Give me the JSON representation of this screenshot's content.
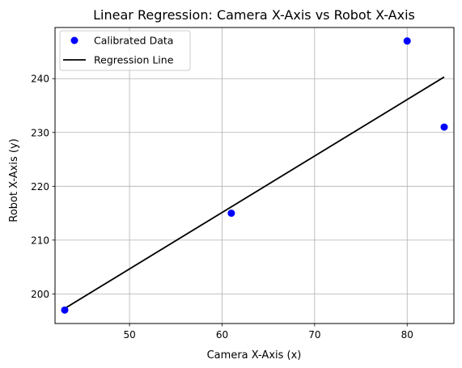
{
  "chart_data": {
    "type": "scatter",
    "title": "Linear Regression: Camera X-Axis vs Robot X-Axis",
    "xlabel": "Camera X-Axis (x)",
    "ylabel": "Robot X-Axis (y)",
    "xlim": [
      41.95,
      85.05
    ],
    "ylim": [
      194.5,
      249.5
    ],
    "xticks": [
      50,
      60,
      70,
      80
    ],
    "yticks": [
      200,
      210,
      220,
      230,
      240
    ],
    "grid": true,
    "legend_position": "top-left",
    "series": [
      {
        "name": "Calibrated Data",
        "kind": "scatter",
        "color": "#0000ff",
        "points": [
          {
            "x": 43,
            "y": 197
          },
          {
            "x": 61,
            "y": 215
          },
          {
            "x": 80,
            "y": 247
          },
          {
            "x": 84,
            "y": 231
          }
        ]
      },
      {
        "name": "Regression Line",
        "kind": "line",
        "color": "#000000",
        "points": [
          {
            "x": 43,
            "y": 197.3
          },
          {
            "x": 84,
            "y": 240.3
          }
        ]
      }
    ]
  }
}
